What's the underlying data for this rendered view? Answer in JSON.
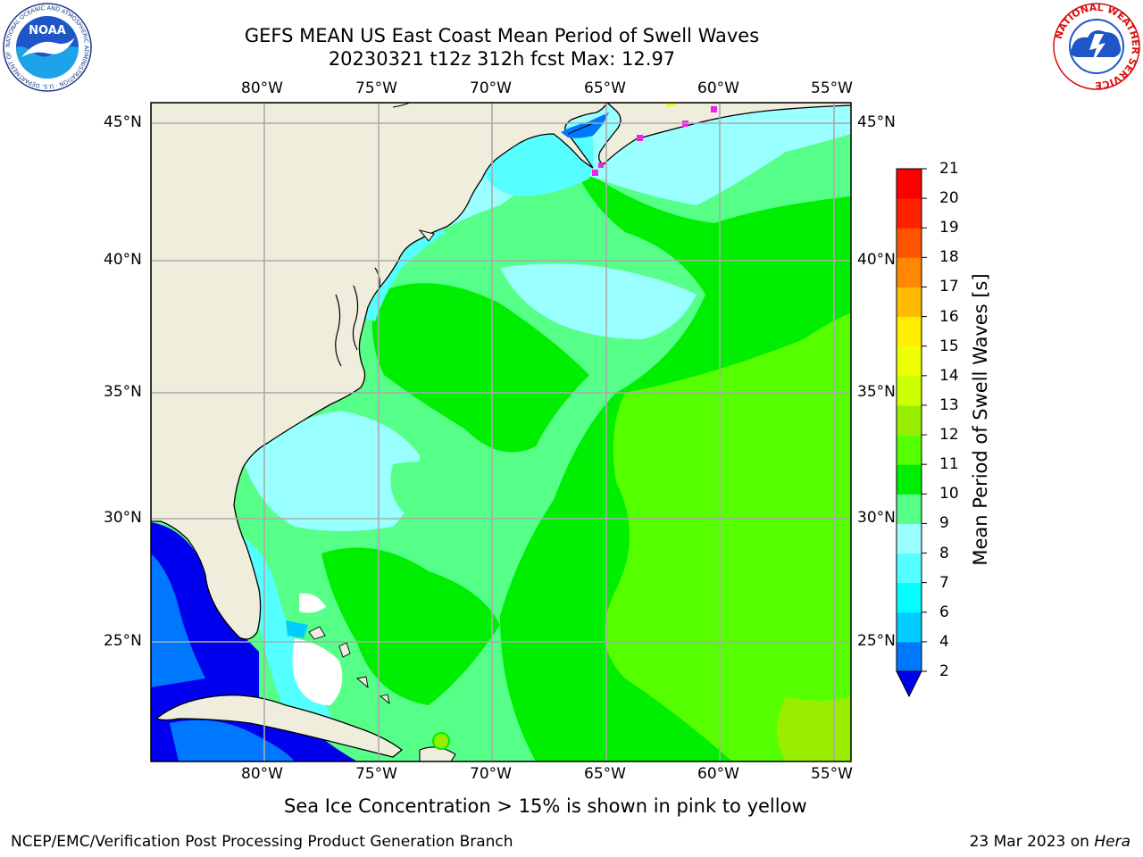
{
  "title": {
    "line1": "GEFS MEAN US East Coast Mean Period of Swell Waves",
    "line2": "20230321 t12z 312h fcst   Max: 12.97"
  },
  "map": {
    "lon_labels": [
      "80°W",
      "75°W",
      "70°W",
      "65°W",
      "60°W",
      "55°W"
    ],
    "lat_labels": [
      "45°N",
      "40°N",
      "35°N",
      "30°N",
      "25°N"
    ],
    "colors": {
      "land": "#efeedc",
      "grid": "#aaaaaa",
      "coast": "#000000",
      "ice": "#ee22ee"
    }
  },
  "colorbar": {
    "label": "Mean Period of Swell Waves [s]",
    "tick_labels": [
      "2",
      "4",
      "6",
      "7",
      "8",
      "9",
      "10",
      "11",
      "12",
      "13",
      "14",
      "15",
      "16",
      "17",
      "18",
      "19",
      "20",
      "21"
    ],
    "colors": [
      "#0000ee",
      "#0077ff",
      "#00ccff",
      "#00ffff",
      "#55ffff",
      "#99ffff",
      "#55ff88",
      "#00ee00",
      "#55ff00",
      "#99ee00",
      "#ccff00",
      "#eeff00",
      "#ffee00",
      "#ffbb00",
      "#ff8800",
      "#ff5500",
      "#ff2200",
      "#ff0000"
    ]
  },
  "note": "Sea Ice Concentration > 15% is shown in pink to yellow",
  "footer": {
    "left": "NCEP/EMC/Verification Post Processing Product Generation Branch",
    "right_prefix": "23 Mar 2023 on ",
    "right_host": "Hera"
  },
  "logos": {
    "noaa": {
      "text": "NOAA",
      "ring": "NATIONAL OCEANIC AND ATMOSPHERIC ADMINISTRATION · U.S. DEPARTMENT OF COMMERCE"
    },
    "nws": {
      "ring": "NATIONAL WEATHER SERVICE"
    }
  }
}
